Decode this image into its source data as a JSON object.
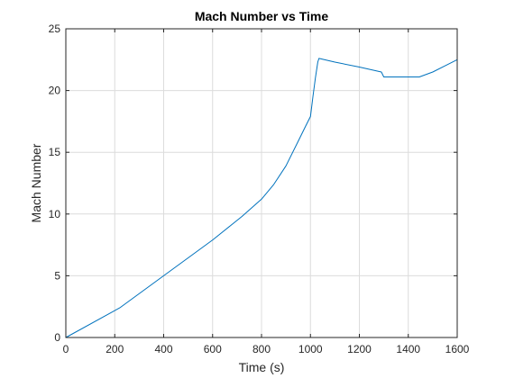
{
  "chart_data": {
    "type": "line",
    "title": "Mach Number vs Time",
    "xlabel": "Time (s)",
    "ylabel": "Mach Number",
    "xlim": [
      0,
      1600
    ],
    "ylim": [
      0,
      25
    ],
    "xticks": [
      0,
      200,
      400,
      600,
      800,
      1000,
      1200,
      1400,
      1600
    ],
    "yticks": [
      0,
      5,
      10,
      15,
      20,
      25
    ],
    "grid": true,
    "line_color": "#0072BD",
    "series": [
      {
        "x": [
          0,
          220,
          400,
          600,
          720,
          800,
          850,
          900,
          950,
          980,
          1000,
          1010,
          1020,
          1030,
          1035,
          1100,
          1200,
          1290,
          1300,
          1350,
          1400,
          1445,
          1500,
          1550,
          1600
        ],
        "y": [
          0,
          2.4,
          5.0,
          7.9,
          9.8,
          11.2,
          12.4,
          13.9,
          15.9,
          17.1,
          17.9,
          19.5,
          21.0,
          22.3,
          22.6,
          22.3,
          21.9,
          21.5,
          21.1,
          21.1,
          21.1,
          21.1,
          21.5,
          22.0,
          22.5
        ]
      }
    ]
  }
}
